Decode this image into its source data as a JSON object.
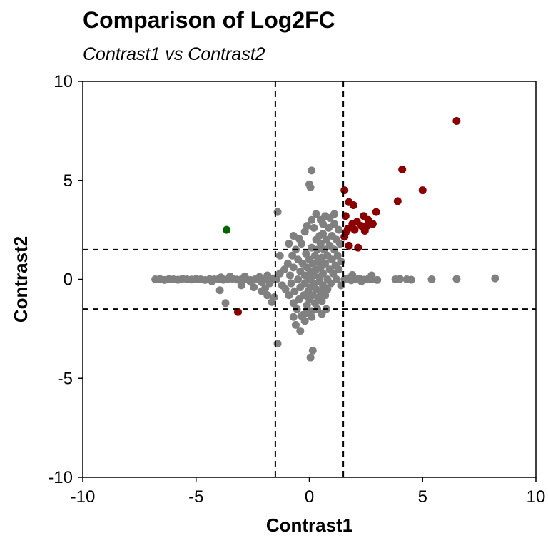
{
  "chart_data": {
    "type": "scatter",
    "title": "Comparison of Log2FC",
    "subtitle": "Contrast1 vs Contrast2",
    "xlabel": "Contrast1",
    "ylabel": "Contrast2",
    "xlim": [
      -10,
      10
    ],
    "ylim": [
      -10,
      10
    ],
    "xticks": [
      -10,
      -5,
      0,
      5,
      10
    ],
    "yticks": [
      -10,
      -5,
      0,
      5,
      10
    ],
    "xtick_labels": [
      "-10",
      "-5",
      "0",
      "5",
      "10"
    ],
    "ytick_labels": [
      "-10",
      "-5",
      "0",
      "5",
      "10"
    ],
    "grid": false,
    "thresholds": {
      "x": [
        -1.5,
        1.5
      ],
      "y": [
        -1.5,
        1.5
      ]
    },
    "colors": {
      "not_significant": "#808080",
      "up_both": "#8b0000",
      "discordant": "#006400",
      "threshold_line": "#000000"
    },
    "series": [
      {
        "color": "#8b0000",
        "points": [
          [
            6.5,
            8.0
          ],
          [
            4.1,
            5.55
          ],
          [
            5.0,
            4.5
          ],
          [
            3.9,
            3.95
          ],
          [
            1.55,
            4.5
          ],
          [
            1.75,
            3.9
          ],
          [
            1.95,
            3.75
          ],
          [
            1.6,
            3.2
          ],
          [
            2.1,
            2.9
          ],
          [
            1.9,
            2.8
          ],
          [
            2.4,
            3.2
          ],
          [
            2.6,
            3.0
          ],
          [
            2.8,
            2.8
          ],
          [
            2.95,
            3.4
          ],
          [
            2.55,
            2.7
          ],
          [
            2.3,
            2.7
          ],
          [
            2.0,
            2.5
          ],
          [
            2.45,
            2.45
          ],
          [
            1.7,
            2.55
          ],
          [
            1.6,
            2.35
          ],
          [
            1.55,
            2.15
          ],
          [
            1.75,
            1.7
          ],
          [
            2.15,
            1.6
          ],
          [
            -3.15,
            -1.65
          ]
        ]
      },
      {
        "color": "#006400",
        "points": [
          [
            -3.65,
            2.5
          ]
        ]
      },
      {
        "color": "#808080",
        "points": [
          [
            -6.8,
            0.0
          ],
          [
            -6.6,
            0.02
          ],
          [
            -6.4,
            -0.03
          ],
          [
            -6.2,
            0.01
          ],
          [
            -6.0,
            0.0
          ],
          [
            -5.8,
            -0.02
          ],
          [
            -5.6,
            0.03
          ],
          [
            -5.4,
            0.0
          ],
          [
            -5.2,
            -0.01
          ],
          [
            -5.0,
            0.02
          ],
          [
            -4.8,
            0.0
          ],
          [
            -4.6,
            -0.03
          ],
          [
            -4.4,
            0.01
          ],
          [
            -4.2,
            0.0
          ],
          [
            -4.0,
            0.02
          ],
          [
            -3.8,
            -0.02
          ],
          [
            -3.6,
            0.0
          ],
          [
            -3.4,
            0.03
          ],
          [
            -3.2,
            -0.01
          ],
          [
            -3.0,
            0.0
          ],
          [
            -2.8,
            0.02
          ],
          [
            -2.6,
            -0.03
          ],
          [
            -2.4,
            0.0
          ],
          [
            -2.2,
            0.01
          ],
          [
            -2.0,
            -0.02
          ],
          [
            -1.9,
            0.03
          ],
          [
            -1.8,
            0.0
          ],
          [
            -1.7,
            -0.05
          ],
          [
            -1.6,
            0.05
          ],
          [
            -1.45,
            0.0
          ],
          [
            -2.85,
            0.15
          ],
          [
            -2.6,
            -0.12
          ],
          [
            -2.2,
            0.12
          ],
          [
            -2.1,
            -0.15
          ],
          [
            -1.85,
            0.2
          ],
          [
            -1.75,
            -0.2
          ],
          [
            -4.3,
            -0.1
          ],
          [
            -3.9,
            0.1
          ],
          [
            -3.5,
            0.15
          ],
          [
            -3.95,
            -0.55
          ],
          [
            -3.7,
            -1.2
          ],
          [
            -3.0,
            -0.3
          ],
          [
            -2.45,
            -0.4
          ],
          [
            -2.1,
            -0.6
          ],
          [
            -1.85,
            -0.8
          ],
          [
            -1.65,
            -1.15
          ],
          [
            -1.55,
            -0.9
          ],
          [
            -1.95,
            -0.45
          ],
          [
            -1.3,
            0.3
          ],
          [
            -1.2,
            -0.3
          ],
          [
            -1.1,
            0.5
          ],
          [
            -1.05,
            -0.5
          ],
          [
            -0.95,
            0.8
          ],
          [
            -0.9,
            -0.8
          ],
          [
            -0.85,
            0.2
          ],
          [
            -0.8,
            -0.2
          ],
          [
            -0.75,
            1.2
          ],
          [
            -0.7,
            -1.2
          ],
          [
            -0.7,
            0.6
          ],
          [
            -0.65,
            -0.6
          ],
          [
            -0.6,
            1.5
          ],
          [
            -0.55,
            -1.5
          ],
          [
            -0.5,
            0.0
          ],
          [
            -0.5,
            1.0
          ],
          [
            -0.45,
            -1.0
          ],
          [
            -0.4,
            0.4
          ],
          [
            -0.4,
            -0.4
          ],
          [
            -0.35,
            1.8
          ],
          [
            -0.3,
            -1.8
          ],
          [
            -0.3,
            0.8
          ],
          [
            -0.25,
            -0.8
          ],
          [
            -0.2,
            0.2
          ],
          [
            -0.2,
            -0.2
          ],
          [
            -0.15,
            1.3
          ],
          [
            -0.1,
            -1.3
          ],
          [
            -0.1,
            0.6
          ],
          [
            -0.05,
            -0.6
          ],
          [
            0.0,
            0.0
          ],
          [
            0.0,
            1.0
          ],
          [
            0.0,
            -1.0
          ],
          [
            0.05,
            0.4
          ],
          [
            0.05,
            -0.4
          ],
          [
            0.1,
            1.6
          ],
          [
            0.1,
            -1.6
          ],
          [
            0.15,
            0.8
          ],
          [
            0.15,
            -0.8
          ],
          [
            0.2,
            0.2
          ],
          [
            0.2,
            -0.2
          ],
          [
            0.25,
            1.2
          ],
          [
            0.25,
            -1.2
          ],
          [
            0.3,
            2.0
          ],
          [
            0.3,
            0.5
          ],
          [
            0.3,
            -0.5
          ],
          [
            0.35,
            1.5
          ],
          [
            0.35,
            -1.5
          ],
          [
            0.4,
            0.9
          ],
          [
            0.4,
            -0.9
          ],
          [
            0.45,
            0.1
          ],
          [
            0.45,
            -0.1
          ],
          [
            0.5,
            1.8
          ],
          [
            0.5,
            0.6
          ],
          [
            0.5,
            -0.6
          ],
          [
            0.55,
            1.1
          ],
          [
            0.55,
            -1.1
          ],
          [
            0.6,
            2.3
          ],
          [
            0.6,
            0.3
          ],
          [
            0.6,
            -0.3
          ],
          [
            0.65,
            1.5
          ],
          [
            0.7,
            0.8
          ],
          [
            0.7,
            -0.8
          ],
          [
            0.75,
            2.0
          ],
          [
            0.8,
            0.0
          ],
          [
            0.8,
            1.2
          ],
          [
            0.8,
            -0.5
          ],
          [
            0.85,
            2.6
          ],
          [
            0.9,
            1.7
          ],
          [
            0.9,
            0.5
          ],
          [
            0.95,
            -0.2
          ],
          [
            1.0,
            2.2
          ],
          [
            1.0,
            1.0
          ],
          [
            1.05,
            0.3
          ],
          [
            1.1,
            2.8
          ],
          [
            1.1,
            1.5
          ],
          [
            1.15,
            0.7
          ],
          [
            1.2,
            2.0
          ],
          [
            1.2,
            0.0
          ],
          [
            1.25,
            1.2
          ],
          [
            1.3,
            2.5
          ],
          [
            1.3,
            0.5
          ],
          [
            1.35,
            1.8
          ],
          [
            1.4,
            0.9
          ],
          [
            1.4,
            -0.3
          ],
          [
            -0.2,
            2.4
          ],
          [
            -0.1,
            2.7
          ],
          [
            0.1,
            3.0
          ],
          [
            0.3,
            3.3
          ],
          [
            0.5,
            3.0
          ],
          [
            0.7,
            3.2
          ],
          [
            0.9,
            3.1
          ],
          [
            1.1,
            3.3
          ],
          [
            0.2,
            2.6
          ],
          [
            0.6,
            2.8
          ],
          [
            -0.7,
            2.2
          ],
          [
            -0.9,
            1.8
          ],
          [
            -0.45,
            2.05
          ],
          [
            -1.3,
            1.2
          ],
          [
            -0.6,
            -2.3
          ],
          [
            -0.2,
            -2.1
          ],
          [
            0.1,
            -1.9
          ],
          [
            -0.4,
            -2.6
          ],
          [
            -0.15,
            -1.7
          ],
          [
            0.55,
            -1.75
          ],
          [
            0.75,
            -1.5
          ],
          [
            -0.7,
            -1.9
          ],
          [
            -0.35,
            -1.85
          ],
          [
            0.0,
            4.8
          ],
          [
            0.05,
            4.65
          ],
          [
            0.1,
            5.5
          ],
          [
            0.45,
            2.2
          ],
          [
            -1.4,
            3.4
          ],
          [
            -1.4,
            -3.25
          ],
          [
            0.15,
            -3.6
          ],
          [
            0.05,
            -3.95
          ],
          [
            1.55,
            0.0
          ],
          [
            1.7,
            0.05
          ],
          [
            1.85,
            -0.05
          ],
          [
            2.0,
            0.0
          ],
          [
            2.2,
            0.04
          ],
          [
            2.4,
            -0.02
          ],
          [
            2.6,
            0.02
          ],
          [
            2.8,
            0.0
          ],
          [
            3.0,
            -0.03
          ],
          [
            2.3,
            -0.1
          ],
          [
            2.75,
            0.2
          ],
          [
            1.9,
            0.22
          ],
          [
            3.8,
            0.0
          ],
          [
            4.0,
            0.02
          ],
          [
            4.3,
            0.0
          ],
          [
            4.5,
            -0.02
          ],
          [
            5.4,
            0.0
          ],
          [
            6.5,
            0.02
          ],
          [
            8.2,
            0.05
          ]
        ]
      }
    ]
  }
}
